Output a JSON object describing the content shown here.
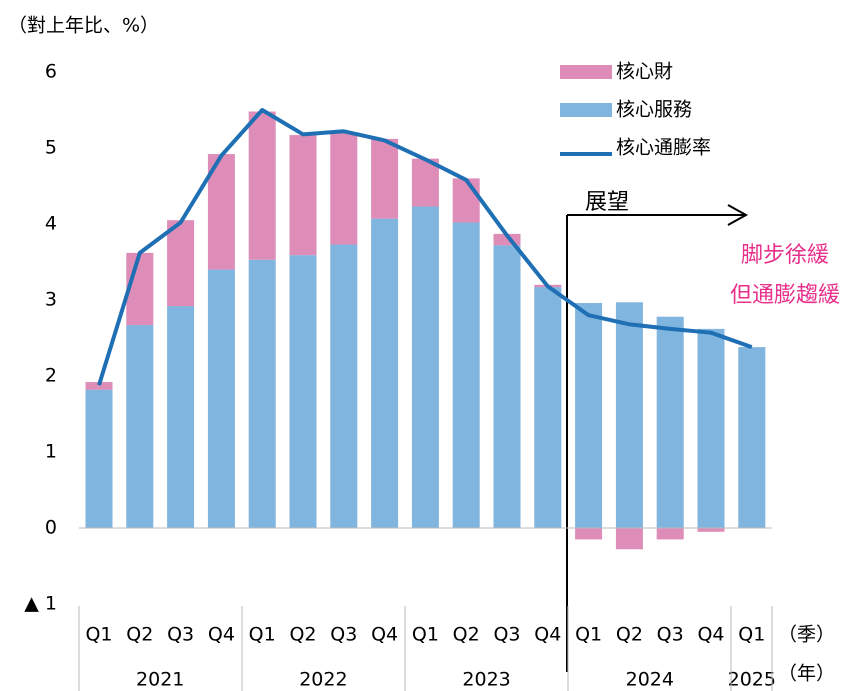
{
  "chart_data": {
    "type": "bar",
    "y_axis_label": "（對上年比、%）",
    "categories": [
      "Q1",
      "Q2",
      "Q3",
      "Q4",
      "Q1",
      "Q2",
      "Q3",
      "Q4",
      "Q1",
      "Q2",
      "Q3",
      "Q4",
      "Q1",
      "Q2",
      "Q3",
      "Q4",
      "Q1"
    ],
    "years": [
      "2021",
      "2022",
      "2023",
      "2024",
      "2025"
    ],
    "quarter_unit": "（季）",
    "year_unit": "（年）",
    "series": [
      {
        "name": "核心財",
        "color": "#de8cb8",
        "kind": "bar",
        "values": [
          0.1,
          0.95,
          1.13,
          1.52,
          1.95,
          1.58,
          1.48,
          1.05,
          0.63,
          0.58,
          0.15,
          0.03,
          -0.15,
          -0.28,
          -0.15,
          -0.05,
          0
        ]
      },
      {
        "name": "核心服務",
        "color": "#7fb5df",
        "kind": "bar",
        "values": [
          1.82,
          2.67,
          2.92,
          3.4,
          3.53,
          3.59,
          3.73,
          4.07,
          4.23,
          4.02,
          3.72,
          3.17,
          2.96,
          2.97,
          2.78,
          2.62,
          2.38
        ]
      },
      {
        "name": "核心通膨率",
        "color": "#1f6fb4",
        "kind": "line",
        "values": [
          1.88,
          3.62,
          4.02,
          4.9,
          5.5,
          5.18,
          5.22,
          5.1,
          4.85,
          4.58,
          3.85,
          3.18,
          2.8,
          2.68,
          2.62,
          2.57,
          2.38
        ]
      }
    ],
    "ylim": [
      -1,
      6
    ],
    "yticks": [
      {
        "value": -1,
        "label": "▲ 1"
      },
      0,
      1,
      2,
      3,
      4,
      5,
      6
    ],
    "annotations": [
      "展望",
      "脚步徐緩",
      "但通膨趨緩"
    ]
  }
}
